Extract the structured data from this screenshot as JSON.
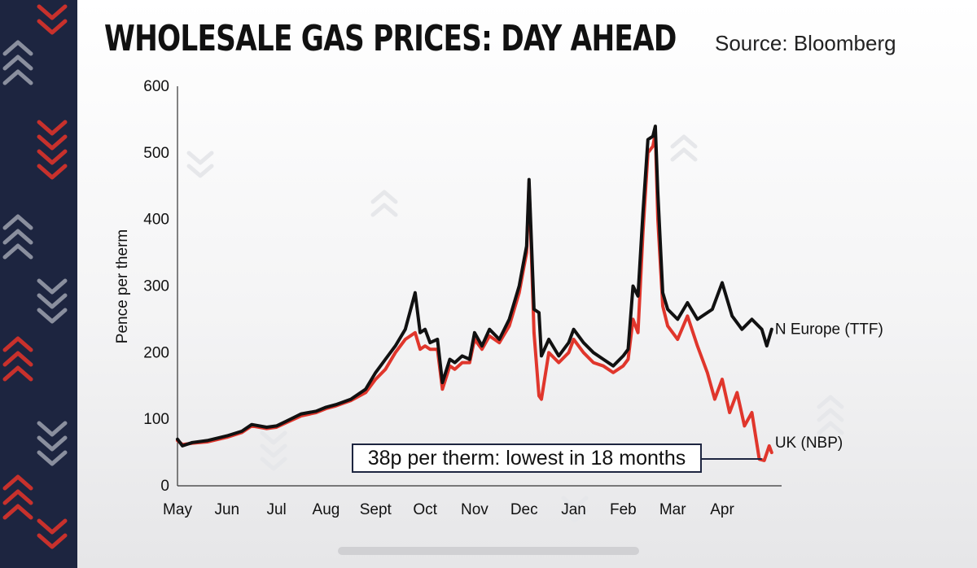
{
  "header": {
    "title": "WHOLESALE GAS PRICES: DAY AHEAD",
    "source": "Source: Bloomberg"
  },
  "callout": {
    "text": "38p per therm: lowest in 18 months"
  },
  "colors": {
    "uk": "#e0362c",
    "europe": "#111111",
    "side_strip": "#1d2540",
    "chevron_red": "#c8312c",
    "chevron_grey": "#8a8f9e"
  },
  "chart_data": {
    "type": "line",
    "title": "WHOLESALE GAS PRICES: DAY AHEAD",
    "xlabel": "",
    "ylabel": "Pence per therm",
    "ylim": [
      0,
      600
    ],
    "yticks": [
      0,
      100,
      200,
      300,
      400,
      500,
      600
    ],
    "xlim": [
      0,
      12.2
    ],
    "xticks": [
      {
        "v": 0,
        "label": "May"
      },
      {
        "v": 1,
        "label": "Jun"
      },
      {
        "v": 2,
        "label": "Jul"
      },
      {
        "v": 3,
        "label": "Aug"
      },
      {
        "v": 4,
        "label": "Sept"
      },
      {
        "v": 5,
        "label": "Oct"
      },
      {
        "v": 6,
        "label": "Nov"
      },
      {
        "v": 7,
        "label": "Dec"
      },
      {
        "v": 8,
        "label": "Jan"
      },
      {
        "v": 9,
        "label": "Feb"
      },
      {
        "v": 10,
        "label": "Mar"
      },
      {
        "v": 11,
        "label": "Apr"
      }
    ],
    "grid": false,
    "x_unit": "months since start of May (2021 to April 2022)",
    "series": [
      {
        "name": "N Europe (TTF)",
        "color": "#111111",
        "x": [
          0.0,
          0.1,
          0.3,
          0.6,
          1.0,
          1.3,
          1.5,
          1.8,
          2.0,
          2.2,
          2.5,
          2.8,
          3.0,
          3.2,
          3.5,
          3.8,
          4.0,
          4.2,
          4.4,
          4.6,
          4.8,
          4.9,
          5.0,
          5.1,
          5.25,
          5.35,
          5.5,
          5.6,
          5.75,
          5.9,
          6.0,
          6.15,
          6.3,
          6.5,
          6.7,
          6.9,
          7.0,
          7.05,
          7.1,
          7.2,
          7.3,
          7.35,
          7.5,
          7.7,
          7.9,
          8.0,
          8.2,
          8.4,
          8.6,
          8.8,
          9.0,
          9.1,
          9.2,
          9.3,
          9.4,
          9.5,
          9.6,
          9.65,
          9.7,
          9.8,
          9.9,
          10.1,
          10.3,
          10.5,
          10.8,
          11.0,
          11.2,
          11.4,
          11.6,
          11.8,
          11.9,
          12.0
        ],
        "y": [
          70,
          60,
          65,
          68,
          75,
          82,
          92,
          88,
          90,
          97,
          108,
          112,
          118,
          122,
          130,
          145,
          170,
          190,
          210,
          235,
          290,
          230,
          235,
          215,
          220,
          155,
          190,
          185,
          195,
          190,
          230,
          210,
          235,
          220,
          250,
          300,
          340,
          360,
          460,
          265,
          260,
          195,
          220,
          195,
          215,
          235,
          215,
          200,
          190,
          180,
          195,
          205,
          300,
          285,
          410,
          520,
          525,
          540,
          440,
          290,
          265,
          250,
          275,
          250,
          265,
          305,
          255,
          235,
          250,
          235,
          210,
          235
        ]
      },
      {
        "name": "UK (NBP)",
        "color": "#e0362c",
        "x": [
          0.0,
          0.1,
          0.3,
          0.6,
          1.0,
          1.3,
          1.5,
          1.8,
          2.0,
          2.2,
          2.5,
          2.8,
          3.0,
          3.2,
          3.5,
          3.8,
          4.0,
          4.2,
          4.4,
          4.6,
          4.8,
          4.9,
          5.0,
          5.1,
          5.25,
          5.35,
          5.5,
          5.6,
          5.75,
          5.9,
          6.0,
          6.15,
          6.3,
          6.5,
          6.7,
          6.9,
          7.0,
          7.05,
          7.1,
          7.2,
          7.3,
          7.35,
          7.5,
          7.7,
          7.9,
          8.0,
          8.2,
          8.4,
          8.6,
          8.8,
          9.0,
          9.1,
          9.2,
          9.3,
          9.4,
          9.5,
          9.6,
          9.65,
          9.7,
          9.8,
          9.9,
          10.1,
          10.3,
          10.5,
          10.7,
          10.85,
          11.0,
          11.15,
          11.3,
          11.45,
          11.6,
          11.75,
          11.85,
          11.95,
          12.0
        ],
        "y": [
          68,
          62,
          64,
          66,
          73,
          80,
          90,
          86,
          88,
          95,
          105,
          110,
          116,
          120,
          128,
          140,
          160,
          175,
          200,
          220,
          230,
          205,
          210,
          205,
          205,
          145,
          180,
          175,
          185,
          185,
          220,
          205,
          225,
          215,
          240,
          290,
          330,
          350,
          455,
          230,
          135,
          130,
          200,
          185,
          200,
          220,
          200,
          185,
          180,
          170,
          180,
          190,
          250,
          230,
          380,
          500,
          510,
          530,
          400,
          270,
          240,
          220,
          255,
          210,
          170,
          130,
          160,
          110,
          140,
          90,
          110,
          40,
          38,
          60,
          50
        ]
      }
    ],
    "annotations": [
      {
        "text": "38p per therm: lowest in 18 months",
        "x": 11.9,
        "y": 38
      }
    ]
  }
}
